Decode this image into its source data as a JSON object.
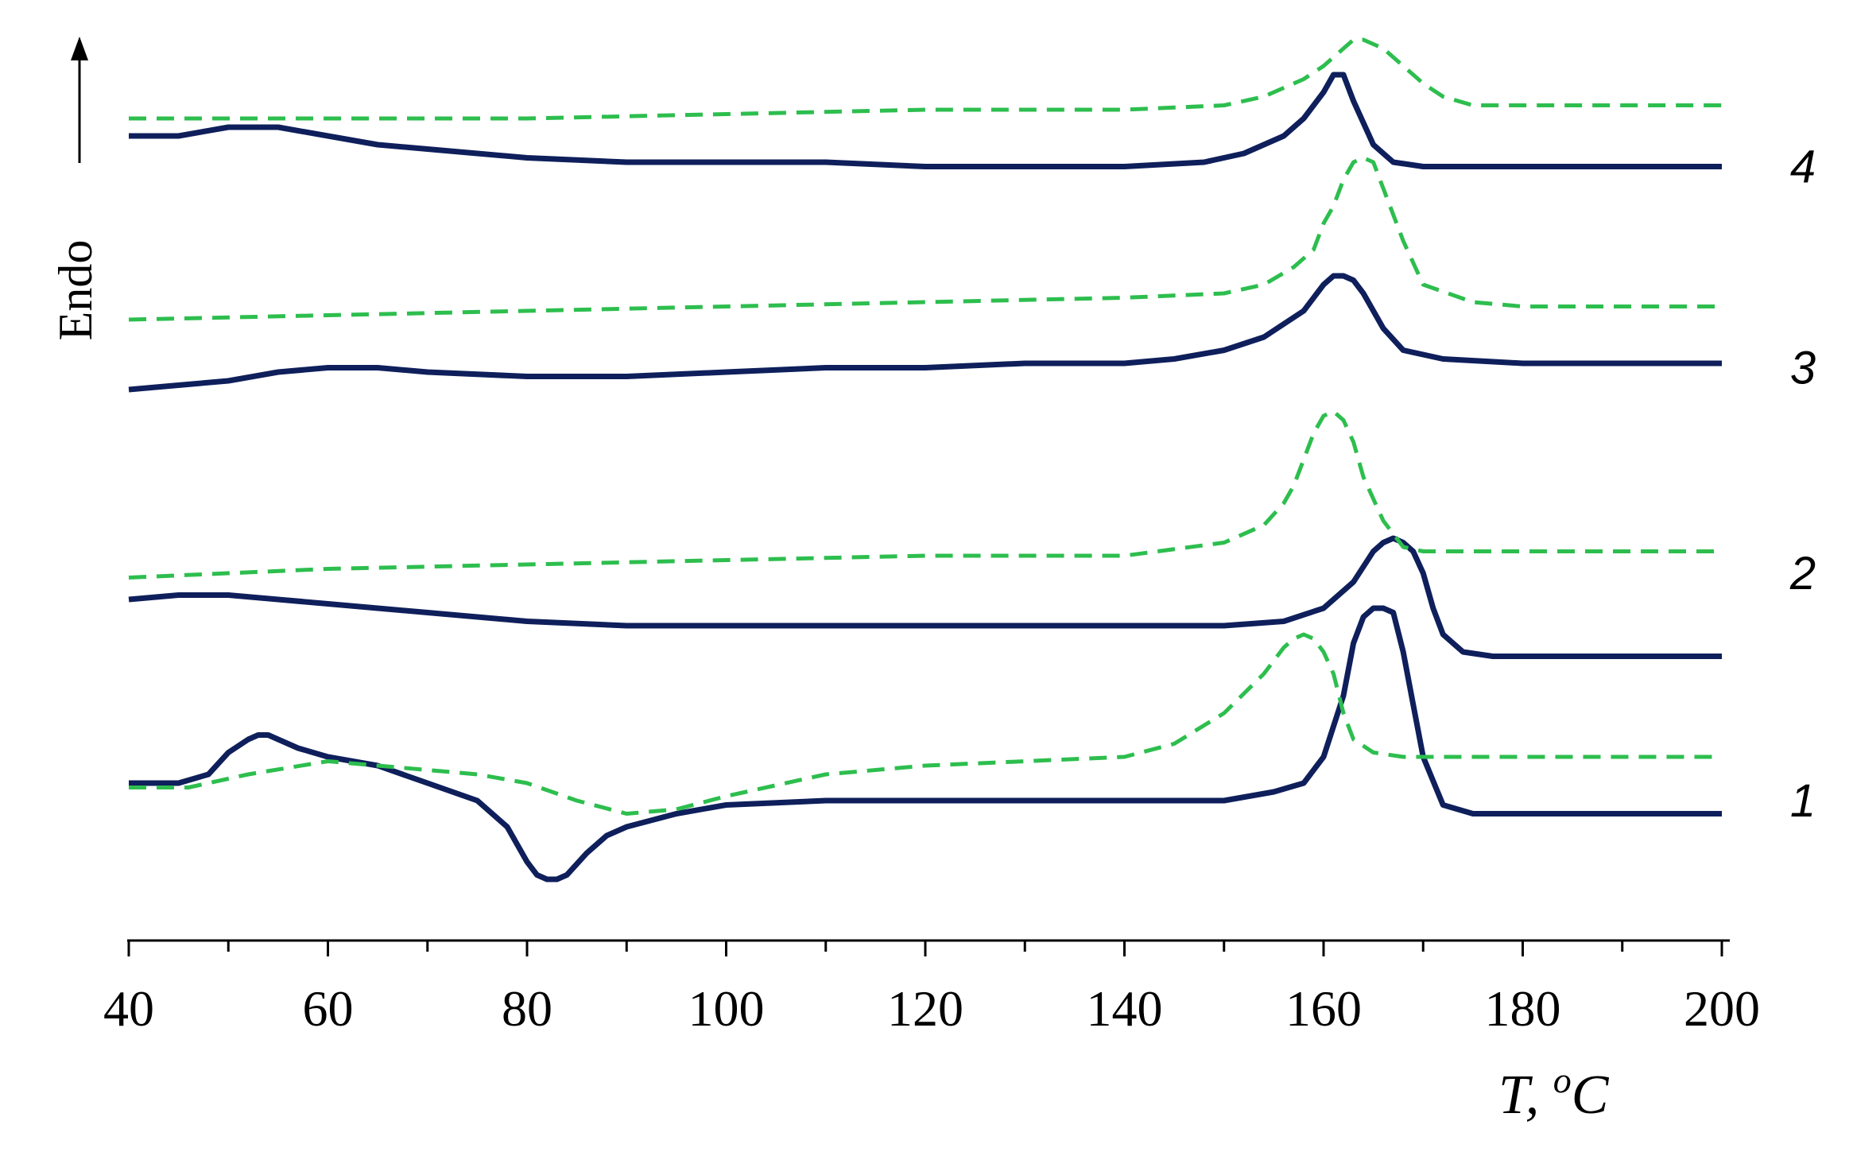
{
  "chart_data": {
    "type": "line",
    "title": "",
    "xlabel_main": "T, ",
    "xlabel_sup": "o",
    "xlabel_unit": "C",
    "ylabel": "Endo",
    "xlim": [
      40,
      200
    ],
    "xticks": [
      40,
      60,
      80,
      100,
      120,
      140,
      160,
      180,
      200
    ],
    "ylim": [
      0,
      100
    ],
    "colors": {
      "solid": "#0e1f5b",
      "dashed": "#2dbe4e"
    },
    "curve_labels": [
      {
        "text": "4",
        "y": 85.5
      },
      {
        "text": "3",
        "y": 62.5
      },
      {
        "text": "2",
        "y": 39
      },
      {
        "text": "1",
        "y": 13
      }
    ],
    "series": [
      {
        "label": "4",
        "style": "solid",
        "x": [
          40,
          45,
          50,
          55,
          60,
          65,
          70,
          75,
          80,
          90,
          100,
          110,
          120,
          130,
          140,
          148,
          152,
          156,
          158,
          160,
          161,
          162,
          163,
          165,
          167,
          170,
          175,
          180,
          190,
          200
        ],
        "y": [
          89,
          89,
          90,
          90,
          89,
          88,
          87.5,
          87,
          86.5,
          86,
          86,
          86,
          85.5,
          85.5,
          85.5,
          86,
          87,
          89,
          91,
          94,
          96,
          96,
          93,
          88,
          86,
          85.5,
          85.5,
          85.5,
          85.5,
          85.5
        ]
      },
      {
        "label": "4",
        "style": "dashed",
        "x": [
          40,
          60,
          80,
          100,
          120,
          140,
          150,
          154,
          158,
          160,
          162,
          163,
          164,
          166,
          168,
          170,
          172,
          175,
          180,
          190,
          200
        ],
        "y": [
          91,
          91,
          91,
          91.5,
          92,
          92,
          92.5,
          93.5,
          95.5,
          97,
          99,
          100,
          100,
          99,
          97,
          95,
          93.5,
          92.5,
          92.5,
          92.5,
          92.5
        ]
      },
      {
        "label": "3",
        "style": "solid",
        "x": [
          40,
          45,
          50,
          55,
          60,
          65,
          70,
          80,
          90,
          100,
          110,
          120,
          130,
          140,
          145,
          150,
          154,
          158,
          160,
          161,
          162,
          163,
          164,
          166,
          168,
          172,
          180,
          190,
          200
        ],
        "y": [
          60,
          60.5,
          61,
          62,
          62.5,
          62.5,
          62,
          61.5,
          61.5,
          62,
          62.5,
          62.5,
          63,
          63,
          63.5,
          64.5,
          66,
          69,
          72,
          73,
          73,
          72.5,
          71,
          67,
          64.5,
          63.5,
          63,
          63,
          63
        ]
      },
      {
        "label": "3",
        "style": "dashed",
        "x": [
          40,
          60,
          80,
          100,
          120,
          140,
          150,
          154,
          157,
          159,
          160,
          161,
          162,
          163,
          164,
          165,
          166,
          168,
          170,
          175,
          180,
          190,
          200
        ],
        "y": [
          68,
          68.5,
          69,
          69.5,
          70,
          70.5,
          71,
          72,
          74,
          76,
          79,
          81,
          84,
          86,
          86.5,
          86,
          83,
          77,
          72,
          70,
          69.5,
          69.5,
          69.5
        ]
      },
      {
        "label": "2",
        "style": "solid",
        "x": [
          40,
          45,
          50,
          55,
          60,
          65,
          70,
          80,
          90,
          100,
          120,
          140,
          150,
          156,
          160,
          163,
          165,
          166,
          167,
          168,
          169,
          170,
          171,
          172,
          174,
          177,
          180,
          190,
          200
        ],
        "y": [
          36,
          36.5,
          36.5,
          36,
          35.5,
          35,
          34.5,
          33.5,
          33,
          33,
          33,
          33,
          33,
          33.5,
          35,
          38,
          41.5,
          42.5,
          43,
          42.5,
          41.5,
          39,
          35,
          32,
          30,
          29.5,
          29.5,
          29.5,
          29.5
        ]
      },
      {
        "label": "2",
        "style": "dashed",
        "x": [
          40,
          60,
          80,
          100,
          120,
          140,
          150,
          154,
          156,
          157,
          158,
          159,
          160,
          161,
          162,
          163,
          164,
          166,
          168,
          170,
          175,
          180,
          190,
          200
        ],
        "y": [
          38.5,
          39.5,
          40,
          40.5,
          41,
          41,
          42.5,
          44.5,
          47,
          49,
          52,
          55,
          57,
          57.5,
          56.5,
          54,
          50,
          45,
          42,
          41.5,
          41.5,
          41.5,
          41.5,
          41.5
        ]
      },
      {
        "label": "1",
        "style": "solid",
        "x": [
          40,
          45,
          48,
          50,
          52,
          53,
          54,
          55,
          57,
          60,
          65,
          70,
          75,
          78,
          80,
          81,
          82,
          83,
          84,
          86,
          88,
          90,
          95,
          100,
          110,
          120,
          130,
          140,
          150,
          155,
          158,
          160,
          162,
          163,
          164,
          165,
          166,
          167,
          168,
          169,
          170,
          172,
          175,
          180,
          190,
          200
        ],
        "y": [
          15,
          15,
          16,
          18.5,
          20,
          20.5,
          20.5,
          20,
          19,
          18,
          17,
          15,
          13,
          10,
          6,
          4.5,
          4,
          4,
          4.5,
          7,
          9,
          10,
          11.5,
          12.5,
          13,
          13,
          13,
          13,
          13,
          14,
          15,
          18,
          25,
          31,
          34,
          35,
          35,
          34.5,
          30,
          24,
          18,
          12.5,
          11.5,
          11.5,
          11.5,
          11.5
        ]
      },
      {
        "label": "1",
        "style": "dashed",
        "x": [
          40,
          46,
          52,
          60,
          65,
          70,
          75,
          80,
          85,
          90,
          95,
          100,
          110,
          120,
          130,
          140,
          145,
          150,
          154,
          156,
          157,
          158,
          159,
          160,
          161,
          162,
          163,
          165,
          168,
          170,
          175,
          180,
          190,
          200
        ],
        "y": [
          14.5,
          14.5,
          16,
          17.5,
          17,
          16.5,
          16,
          15,
          13,
          11.5,
          12,
          13.5,
          16,
          17,
          17.5,
          18,
          19.5,
          23,
          27.5,
          30.5,
          31.5,
          32,
          31.5,
          30,
          27.5,
          23,
          20,
          18.5,
          18,
          18,
          18,
          18,
          18,
          18
        ]
      }
    ]
  }
}
